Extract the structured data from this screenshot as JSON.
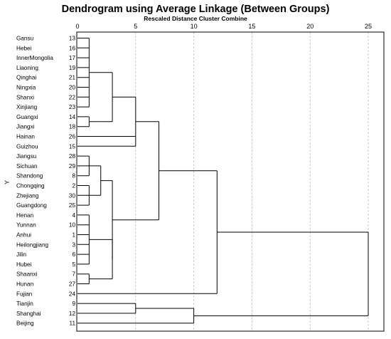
{
  "title": "Dendrogram using Average Linkage (Between Groups)",
  "subtitle": "Rescaled Distance Cluster Combine",
  "y_axis_label": "Y",
  "axis_ticks": [
    0,
    5,
    10,
    15,
    20,
    25
  ],
  "chart_data": {
    "type": "dendrogram",
    "linkage": "Average Linkage (Between Groups)",
    "x_axis": "Rescaled Distance Cluster Combine",
    "x_range": [
      0,
      25
    ],
    "grid": true,
    "leaves": [
      {
        "name": "Gansu",
        "case": "13"
      },
      {
        "name": "Hebei",
        "case": "16"
      },
      {
        "name": "InnerMongolia",
        "case": "17"
      },
      {
        "name": "Liaoning",
        "case": "19"
      },
      {
        "name": "Qinghai",
        "case": "21"
      },
      {
        "name": "Ningxia",
        "case": "20"
      },
      {
        "name": "Shanxi",
        "case": "22"
      },
      {
        "name": "Xinjiang",
        "case": "23"
      },
      {
        "name": "Guangxi",
        "case": "14"
      },
      {
        "name": "Jiangxi",
        "case": "18"
      },
      {
        "name": "Hainan",
        "case": "26"
      },
      {
        "name": "Guizhou",
        "case": "15"
      },
      {
        "name": "Jiangsu",
        "case": "28"
      },
      {
        "name": "Sichuan",
        "case": "29"
      },
      {
        "name": "Shandong",
        "case": "8"
      },
      {
        "name": "Chongqing",
        "case": "2"
      },
      {
        "name": "Zhejiang",
        "case": "30"
      },
      {
        "name": "Guangdong",
        "case": "25"
      },
      {
        "name": "Henan",
        "case": "4"
      },
      {
        "name": "Yunnan",
        "case": "10"
      },
      {
        "name": "Anhui",
        "case": "1"
      },
      {
        "name": "Heilongjiang",
        "case": "3"
      },
      {
        "name": "Jilin",
        "case": "6"
      },
      {
        "name": "Hubei",
        "case": "5"
      },
      {
        "name": "Shaanxi",
        "case": "7"
      },
      {
        "name": "Hunan",
        "case": "27"
      },
      {
        "name": "Fujian",
        "case": "24"
      },
      {
        "name": "Tianjin",
        "case": "9"
      },
      {
        "name": "Shanghai",
        "case": "12"
      },
      {
        "name": "Beijing",
        "case": "11"
      }
    ],
    "merges": [
      {
        "children": [
          "L0",
          "L1",
          "L2",
          "L3",
          "L4",
          "L5",
          "L6",
          "L7"
        ],
        "distance": 1
      },
      {
        "children": [
          "L8",
          "L9"
        ],
        "distance": 1
      },
      {
        "children": [
          "M1"
        ],
        "distance": 2
      },
      {
        "children": [
          "M0",
          "M2"
        ],
        "distance": 3
      },
      {
        "children": [
          "L12",
          "L13",
          "L14"
        ],
        "distance": 1
      },
      {
        "children": [
          "L15",
          "L16",
          "L17"
        ],
        "distance": 1
      },
      {
        "children": [
          "M4",
          "M5"
        ],
        "distance": 2
      },
      {
        "children": [
          "L18",
          "L19",
          "L20",
          "L21",
          "L22",
          "L23"
        ],
        "distance": 1
      },
      {
        "children": [
          "L24",
          "L25"
        ],
        "distance": 1
      },
      {
        "children": [
          "M7",
          "M8"
        ],
        "distance": 3
      },
      {
        "children": [
          "M6",
          "M9"
        ],
        "distance": 3
      },
      {
        "children": [
          "M3",
          "L10",
          "L11"
        ],
        "distance": 5
      },
      {
        "children": [
          "M11",
          "M10"
        ],
        "distance": 7
      },
      {
        "children": [
          "M12",
          "L26"
        ],
        "distance": 12
      },
      {
        "children": [
          "L27",
          "L28"
        ],
        "distance": 5
      },
      {
        "children": [
          "M14",
          "L29"
        ],
        "distance": 10
      },
      {
        "children": [
          "M13",
          "M15"
        ],
        "distance": 25
      }
    ]
  }
}
